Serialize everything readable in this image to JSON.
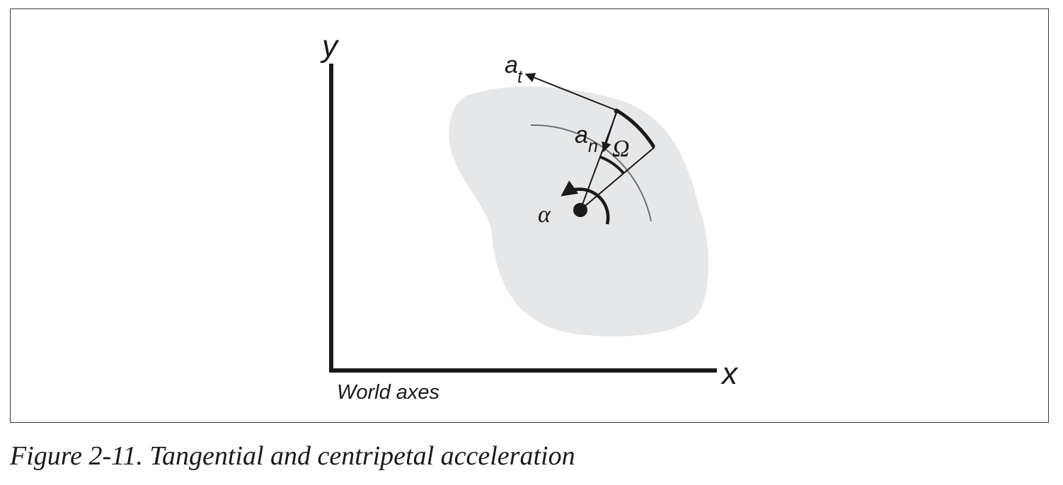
{
  "figure": {
    "caption": "Figure 2-11. Tangential and centripetal acceleration",
    "axes": {
      "x_label": "x",
      "y_label": "y",
      "name": "World axes"
    },
    "labels": {
      "tangential_symbol": "a",
      "tangential_subscript": "t",
      "normal_symbol": "a",
      "normal_subscript": "n",
      "angular_velocity": "Ω",
      "angular_acceleration": "α"
    },
    "colors": {
      "body_fill": "#e6e7e8",
      "ink": "#1a1a1a",
      "arc": "#6d6e71"
    }
  }
}
